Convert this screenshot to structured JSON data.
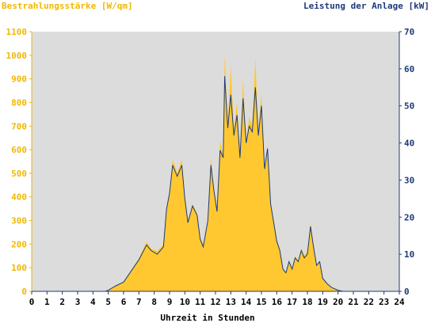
{
  "chart_data": {
    "type": "area",
    "title_left": "Bestrahlungsstärke [W/qm]",
    "title_right": "Leistung der Anlage [kW]",
    "xlabel": "Uhrzeit in Stunden",
    "x_ticks": [
      "0",
      "1",
      "2",
      "3",
      "4",
      "5",
      "6",
      "7",
      "8",
      "9",
      "10",
      "11",
      "12",
      "13",
      "14",
      "15",
      "16",
      "17",
      "18",
      "19",
      "20",
      "21",
      "22",
      "23",
      "24"
    ],
    "y_left_ticks": [
      "0",
      "100",
      "200",
      "300",
      "400",
      "500",
      "600",
      "700",
      "800",
      "900",
      "1000",
      "1100"
    ],
    "y_right_ticks": [
      "0",
      "10",
      "20",
      "30",
      "40",
      "50",
      "60",
      "70"
    ],
    "xlim": [
      0,
      24
    ],
    "ylim_left": [
      0,
      1100
    ],
    "ylim_right": [
      0,
      70
    ],
    "background": "#dcdcdc",
    "colors": {
      "irradiance": "#ffc830",
      "power": "#1f3a78",
      "left_axis": "#f0b800",
      "right_axis": "#1f3a78"
    },
    "series": [
      {
        "unit": "W/qm",
        "axis": "left",
        "x": [
          0,
          4.8,
          5.0,
          5.5,
          6.0,
          6.5,
          7.0,
          7.5,
          7.8,
          8.2,
          8.6,
          8.8,
          9.0,
          9.2,
          9.5,
          9.8,
          10.0,
          10.2,
          10.5,
          10.8,
          11.0,
          11.2,
          11.5,
          11.7,
          11.9,
          12.1,
          12.3,
          12.5,
          12.6,
          12.8,
          13.0,
          13.2,
          13.4,
          13.6,
          13.8,
          14.0,
          14.2,
          14.4,
          14.6,
          14.8,
          15.0,
          15.2,
          15.4,
          15.6,
          15.8,
          16.0,
          16.2,
          16.4,
          16.6,
          16.8,
          17.0,
          17.2,
          17.4,
          17.6,
          17.8,
          18.0,
          18.2,
          18.4,
          18.6,
          18.8,
          19.0,
          19.3,
          19.6,
          20.0,
          20.3,
          24
        ],
        "values": [
          0,
          0,
          5,
          25,
          40,
          90,
          140,
          210,
          180,
          170,
          200,
          350,
          420,
          560,
          500,
          560,
          400,
          300,
          370,
          330,
          230,
          200,
          300,
          570,
          430,
          350,
          640,
          580,
          1000,
          700,
          960,
          680,
          800,
          580,
          900,
          620,
          740,
          700,
          990,
          670,
          840,
          520,
          620,
          380,
          300,
          220,
          180,
          100,
          80,
          130,
          100,
          150,
          130,
          180,
          150,
          170,
          290,
          200,
          110,
          130,
          60,
          30,
          15,
          5,
          0,
          0
        ]
      },
      {
        "unit": "kW",
        "axis": "right",
        "x": [
          0,
          4.8,
          5.0,
          5.5,
          6.0,
          6.5,
          7.0,
          7.5,
          7.8,
          8.2,
          8.6,
          8.8,
          9.0,
          9.2,
          9.5,
          9.8,
          10.0,
          10.2,
          10.5,
          10.8,
          11.0,
          11.2,
          11.5,
          11.7,
          11.9,
          12.1,
          12.3,
          12.5,
          12.6,
          12.8,
          13.0,
          13.2,
          13.4,
          13.6,
          13.8,
          14.0,
          14.2,
          14.4,
          14.6,
          14.8,
          15.0,
          15.2,
          15.4,
          15.6,
          15.8,
          16.0,
          16.2,
          16.4,
          16.6,
          16.8,
          17.0,
          17.2,
          17.4,
          17.6,
          17.8,
          18.0,
          18.2,
          18.4,
          18.6,
          18.8,
          19.0,
          19.3,
          19.6,
          20.0,
          20.3,
          24
        ],
        "values": [
          0,
          0,
          0.3,
          1.5,
          2.5,
          5.5,
          8.5,
          12.5,
          11,
          10,
          12,
          22,
          26.5,
          34,
          31,
          34,
          25,
          18.5,
          23,
          20.5,
          14,
          12,
          19,
          34,
          27,
          21.5,
          38,
          36,
          58,
          44,
          53,
          42,
          47.5,
          36,
          52,
          40,
          44.5,
          43,
          55,
          42,
          50,
          33,
          38.5,
          23.5,
          18.5,
          13.5,
          11,
          6,
          5,
          8,
          6,
          9,
          8,
          11,
          9,
          10,
          17.5,
          12,
          7,
          8,
          3.5,
          2,
          1,
          0.3,
          0,
          0
        ]
      }
    ],
    "grid": false,
    "legend": "none"
  }
}
